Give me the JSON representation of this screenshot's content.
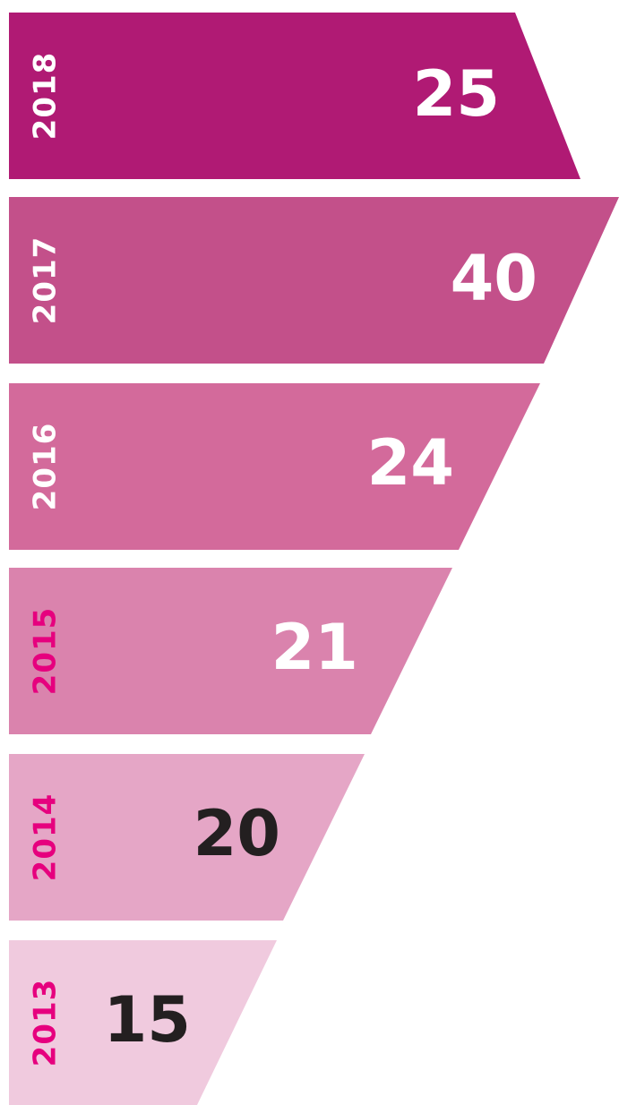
{
  "items": [
    {
      "year": "2018",
      "value": "25"
    },
    {
      "year": "2017",
      "value": "40"
    },
    {
      "year": "2016",
      "value": "24"
    },
    {
      "year": "2015",
      "value": "21"
    },
    {
      "year": "2014",
      "value": "20"
    },
    {
      "year": "2013",
      "value": "15"
    }
  ]
}
